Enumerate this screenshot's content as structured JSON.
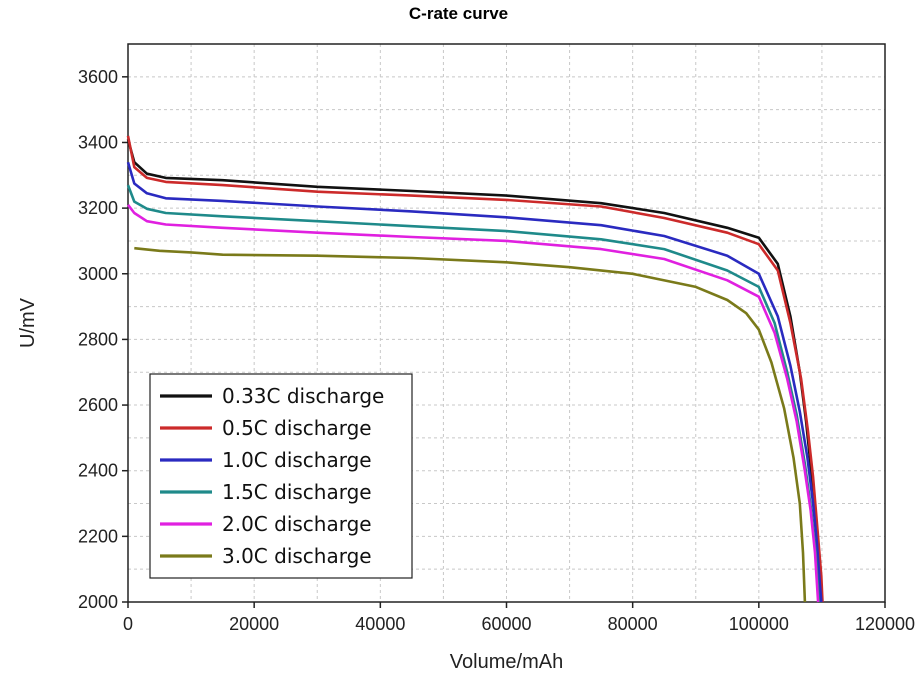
{
  "chart_data": {
    "type": "line",
    "title": "C-rate curve",
    "xlabel": "Volume/mAh",
    "ylabel": "U/mV",
    "xlim": [
      0,
      120000
    ],
    "ylim": [
      2000,
      3700
    ],
    "x_ticks": [
      0,
      20000,
      40000,
      60000,
      80000,
      100000,
      120000
    ],
    "y_ticks": [
      2000,
      2200,
      2400,
      2600,
      2800,
      3000,
      3200,
      3400,
      3600
    ],
    "grid": true,
    "legend_position": "bottom-left",
    "series": [
      {
        "name": "0.33C discharge",
        "color": "#111111",
        "points": [
          [
            0,
            3410
          ],
          [
            1000,
            3340
          ],
          [
            3000,
            3305
          ],
          [
            6000,
            3292
          ],
          [
            15000,
            3285
          ],
          [
            30000,
            3265
          ],
          [
            45000,
            3252
          ],
          [
            60000,
            3238
          ],
          [
            75000,
            3215
          ],
          [
            85000,
            3185
          ],
          [
            95000,
            3140
          ],
          [
            100000,
            3110
          ],
          [
            103000,
            3030
          ],
          [
            105000,
            2870
          ],
          [
            106500,
            2700
          ],
          [
            107500,
            2550
          ],
          [
            108300,
            2400
          ],
          [
            109000,
            2250
          ],
          [
            109500,
            2100
          ],
          [
            109800,
            2000
          ]
        ]
      },
      {
        "name": "0.5C discharge",
        "color": "#cc2a2a",
        "points": [
          [
            0,
            3420
          ],
          [
            1000,
            3325
          ],
          [
            3000,
            3292
          ],
          [
            6000,
            3280
          ],
          [
            15000,
            3270
          ],
          [
            30000,
            3250
          ],
          [
            45000,
            3238
          ],
          [
            60000,
            3225
          ],
          [
            75000,
            3205
          ],
          [
            85000,
            3170
          ],
          [
            95000,
            3125
          ],
          [
            100000,
            3090
          ],
          [
            103000,
            3010
          ],
          [
            105000,
            2850
          ],
          [
            106700,
            2680
          ],
          [
            107800,
            2520
          ],
          [
            108600,
            2380
          ],
          [
            109300,
            2220
          ],
          [
            109900,
            2080
          ],
          [
            110100,
            2000
          ]
        ]
      },
      {
        "name": "1.0C discharge",
        "color": "#2a2ac0",
        "points": [
          [
            0,
            3340
          ],
          [
            1000,
            3275
          ],
          [
            3000,
            3245
          ],
          [
            6000,
            3230
          ],
          [
            15000,
            3222
          ],
          [
            30000,
            3205
          ],
          [
            45000,
            3190
          ],
          [
            60000,
            3172
          ],
          [
            75000,
            3148
          ],
          [
            85000,
            3115
          ],
          [
            95000,
            3055
          ],
          [
            100000,
            3000
          ],
          [
            103000,
            2870
          ],
          [
            105000,
            2720
          ],
          [
            106500,
            2580
          ],
          [
            107700,
            2440
          ],
          [
            108600,
            2300
          ],
          [
            109200,
            2180
          ],
          [
            109700,
            2050
          ],
          [
            109900,
            2000
          ]
        ]
      },
      {
        "name": "1.5C discharge",
        "color": "#1f8a8a",
        "points": [
          [
            0,
            3270
          ],
          [
            1000,
            3220
          ],
          [
            3000,
            3198
          ],
          [
            6000,
            3185
          ],
          [
            15000,
            3175
          ],
          [
            30000,
            3160
          ],
          [
            45000,
            3145
          ],
          [
            60000,
            3130
          ],
          [
            75000,
            3105
          ],
          [
            85000,
            3075
          ],
          [
            95000,
            3010
          ],
          [
            100000,
            2960
          ],
          [
            102500,
            2850
          ],
          [
            104500,
            2700
          ],
          [
            106000,
            2570
          ],
          [
            107300,
            2420
          ],
          [
            108300,
            2280
          ],
          [
            109000,
            2150
          ],
          [
            109500,
            2000
          ]
        ]
      },
      {
        "name": "2.0C discharge",
        "color": "#e020e0",
        "points": [
          [
            0,
            3210
          ],
          [
            1000,
            3185
          ],
          [
            3000,
            3160
          ],
          [
            6000,
            3150
          ],
          [
            15000,
            3140
          ],
          [
            30000,
            3125
          ],
          [
            45000,
            3112
          ],
          [
            60000,
            3100
          ],
          [
            75000,
            3075
          ],
          [
            85000,
            3045
          ],
          [
            95000,
            2980
          ],
          [
            100000,
            2930
          ],
          [
            102500,
            2820
          ],
          [
            104500,
            2680
          ],
          [
            106000,
            2550
          ],
          [
            107200,
            2410
          ],
          [
            108200,
            2280
          ],
          [
            108900,
            2150
          ],
          [
            109400,
            2000
          ]
        ]
      },
      {
        "name": "3.0C discharge",
        "color": "#7a7a1a",
        "points": [
          [
            1000,
            3078
          ],
          [
            5000,
            3070
          ],
          [
            10000,
            3065
          ],
          [
            15000,
            3058
          ],
          [
            30000,
            3055
          ],
          [
            45000,
            3048
          ],
          [
            60000,
            3035
          ],
          [
            70000,
            3020
          ],
          [
            80000,
            3000
          ],
          [
            90000,
            2960
          ],
          [
            95000,
            2920
          ],
          [
            98000,
            2880
          ],
          [
            100000,
            2830
          ],
          [
            102000,
            2730
          ],
          [
            104000,
            2590
          ],
          [
            105500,
            2440
          ],
          [
            106500,
            2300
          ],
          [
            107000,
            2150
          ],
          [
            107300,
            2000
          ]
        ]
      }
    ]
  }
}
